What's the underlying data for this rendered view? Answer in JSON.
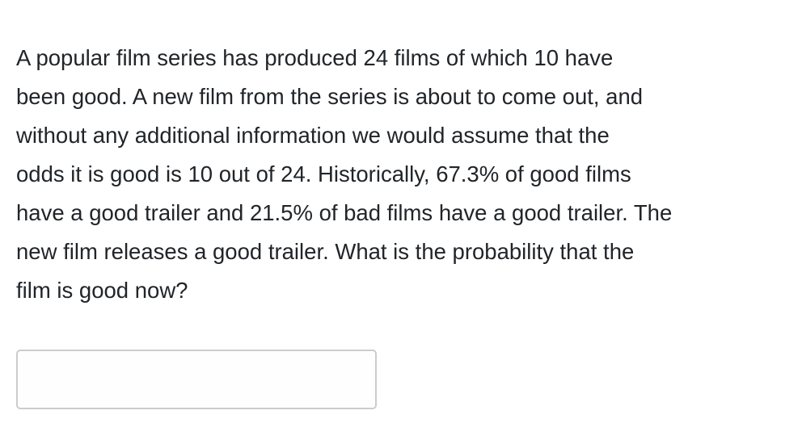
{
  "question": {
    "lines": [
      "A popular film series has produced 24 films of which 10 have",
      "been good. A new film from the series is about to come out, and",
      "without any additional information we would assume that the",
      "odds it is good is 10 out of 24. Historically, 67.3% of good films",
      "have a good trailer and 21.5% of bad films have a good trailer. The",
      "new film releases a good trailer. What is the probability that the",
      "film is good now?"
    ]
  },
  "answer": {
    "value": "",
    "placeholder": ""
  }
}
